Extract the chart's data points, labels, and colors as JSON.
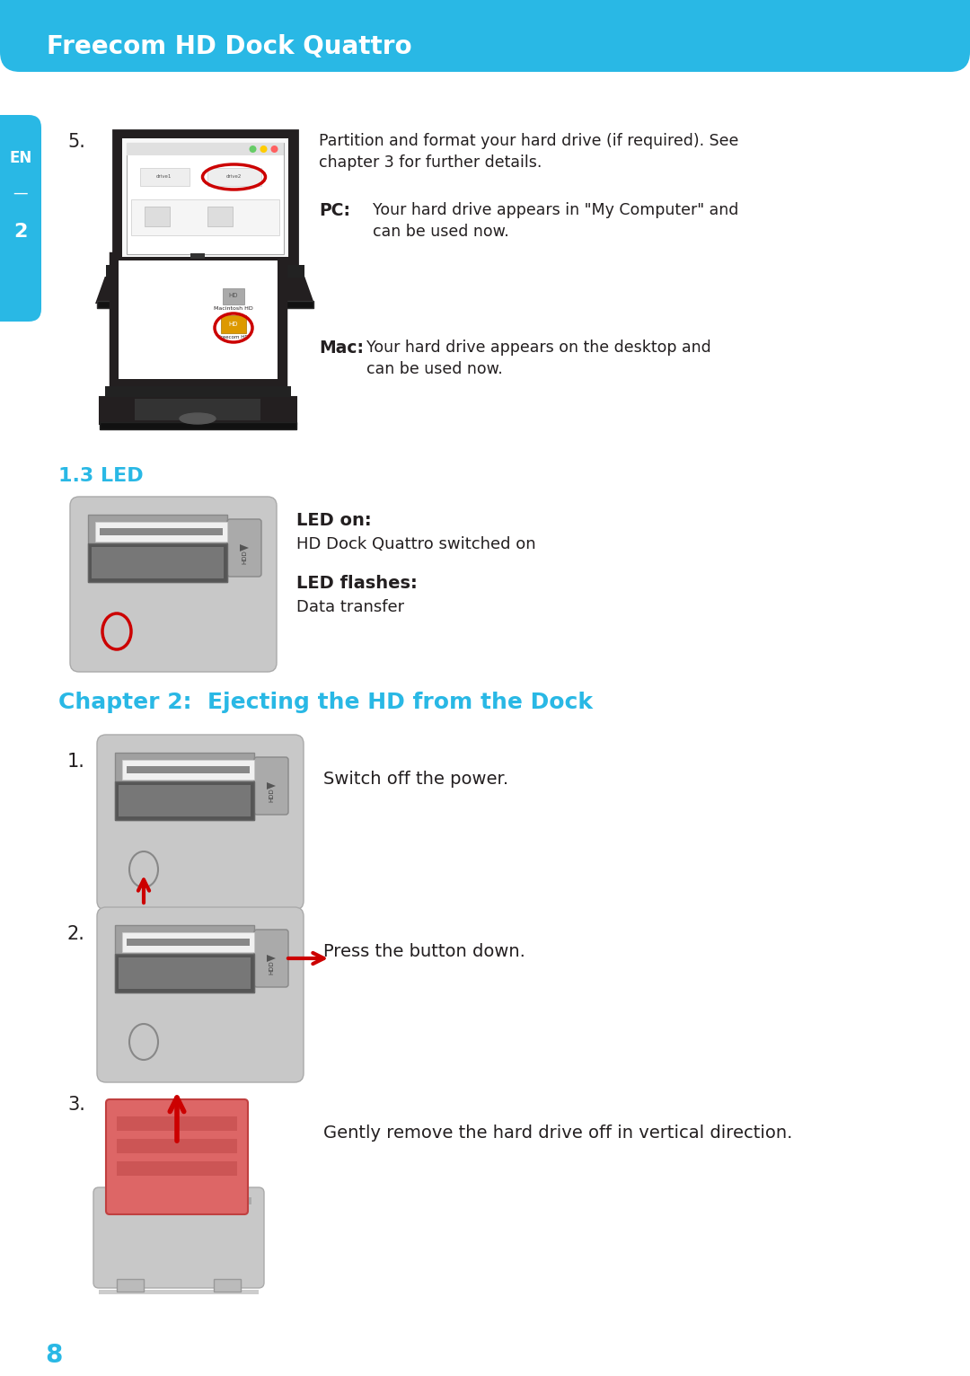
{
  "header_text": "Freecom HD Dock Quattro",
  "header_bg": "#29B8E5",
  "page_bg": "#FFFFFF",
  "cyan_color": "#29B8E5",
  "red_color": "#CC0000",
  "dark_color": "#231F20",
  "step5_num": "5.",
  "step5_line1": "Partition and format your hard drive (if required). See",
  "step5_line2": "chapter 3 for further details.",
  "pc_label": "PC:",
  "pc_line1": "Your hard drive appears in \"My Computer\" and",
  "pc_line2": "can be used now.",
  "mac_label": "Mac:",
  "mac_line1": "Your hard drive appears on the desktop and",
  "mac_line2": "can be used now.",
  "led_title": "1.3 LED",
  "led_on_label": "LED on:",
  "led_on_text": "HD Dock Quattro switched on",
  "led_flashes_label": "LED flashes:",
  "led_flashes_text": "Data transfer",
  "ch2_title": "Chapter 2:  Ejecting the HD from the Dock",
  "s1_num": "1.",
  "s1_text": "Switch off the power.",
  "s2_num": "2.",
  "s2_text": "Press the button down.",
  "s3_num": "3.",
  "s3_text": "Gently remove the hard drive off in vertical direction.",
  "page_number": "8"
}
